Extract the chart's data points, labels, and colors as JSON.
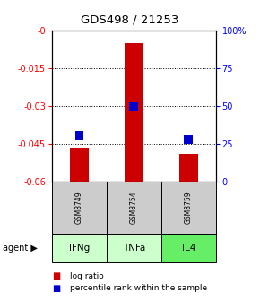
{
  "title": "GDS498 / 21253",
  "samples": [
    "GSM8749",
    "GSM8754",
    "GSM8759"
  ],
  "agents": [
    "IFNg",
    "TNFa",
    "IL4"
  ],
  "log_ratios": [
    -0.047,
    -0.005,
    -0.049
  ],
  "percentile_ranks": [
    0.3,
    0.5,
    0.28
  ],
  "ylim_left": [
    -0.06,
    0.0
  ],
  "yticks_left": [
    0.0,
    -0.015,
    -0.03,
    -0.045,
    -0.06
  ],
  "ytick_labels_left": [
    "-0",
    "-0.015",
    "-0.03",
    "-0.045",
    "-0.06"
  ],
  "yticks_right": [
    1.0,
    0.75,
    0.5,
    0.25,
    0.0
  ],
  "ytick_labels_right": [
    "100%",
    "75",
    "50",
    "25",
    "0"
  ],
  "bar_color": "#cc0000",
  "percentile_color": "#0000cc",
  "agent_colors": [
    "#ccffcc",
    "#ccffcc",
    "#66ee66"
  ],
  "sample_bg_color": "#cccccc",
  "bar_width": 0.35,
  "legend_log_ratio_label": "log ratio",
  "legend_percentile_label": "percentile rank within the sample",
  "gridlines": [
    -0.015,
    -0.03,
    -0.045
  ]
}
